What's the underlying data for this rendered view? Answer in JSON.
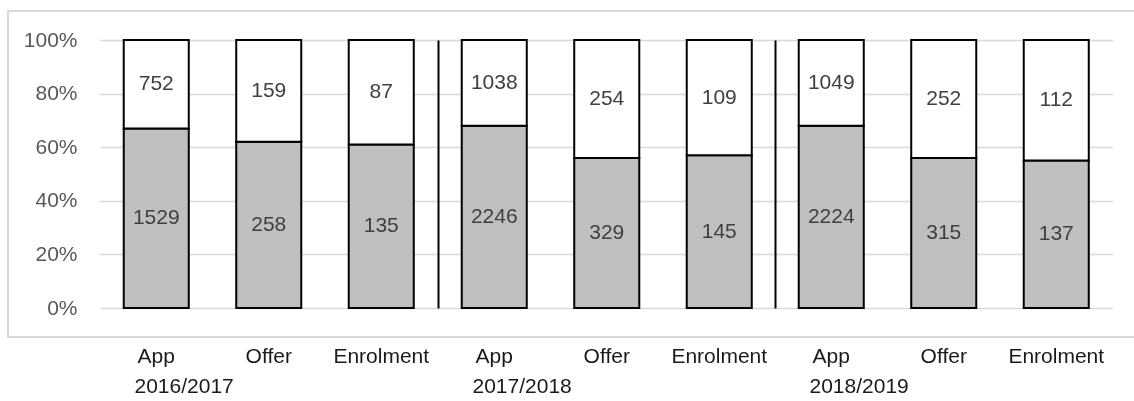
{
  "chart_data": [
    {
      "type": "bar",
      "stacked": true,
      "categories": [
        "App",
        "Offer",
        "Enrolment"
      ],
      "xlabel": "2016/2017",
      "series": [
        {
          "color": "#bfbfbf",
          "values": [
            67,
            62,
            61
          ]
        },
        {
          "color": "#ffffff",
          "values": [
            33,
            38,
            39
          ]
        }
      ],
      "ylim": [
        0,
        100
      ],
      "yticks": [
        {
          "value": 0,
          "label": "0%"
        },
        {
          "value": 20,
          "label": "20%"
        },
        {
          "value": 40,
          "label": "40%"
        },
        {
          "value": 60,
          "label": "60%"
        },
        {
          "value": 80,
          "label": "80%"
        },
        {
          "value": 100,
          "label": "100%"
        }
      ],
      "grid": "y",
      "annotations": [
        "1529",
        "258",
        "135",
        "752",
        "159",
        "87"
      ]
    },
    {
      "type": "bar",
      "stacked": true,
      "categories": [
        "App",
        "Offer",
        "Enrolment"
      ],
      "xlabel": "2017/2018",
      "series": [
        {
          "color": "#bfbfbf",
          "values": [
            68,
            56,
            57
          ]
        },
        {
          "color": "#ffffff",
          "values": [
            32,
            44,
            43
          ]
        }
      ],
      "ylim": [
        0,
        100
      ],
      "yticks": [
        0,
        20,
        40,
        60,
        80,
        100
      ],
      "grid": "y",
      "tick_labels": "x",
      "annotations": [
        "2246",
        "329",
        "145",
        "1038",
        "254",
        "109"
      ]
    },
    {
      "type": "bar",
      "stacked": true,
      "categories": [
        "App",
        "Offer",
        "Enrolment"
      ],
      "xlabel": "2018/2019",
      "series": [
        {
          "color": "#bfbfbf",
          "values": [
            68,
            56,
            55
          ]
        },
        {
          "color": "#ffffff",
          "values": [
            32,
            44,
            45
          ]
        }
      ],
      "ylim": [
        0,
        100
      ],
      "yticks": [
        0,
        20,
        40,
        60,
        80,
        100
      ],
      "grid": "y",
      "tick_labels": "x",
      "annotations": [
        "2224",
        "315",
        "137",
        "1049",
        "252",
        "112"
      ]
    }
  ]
}
